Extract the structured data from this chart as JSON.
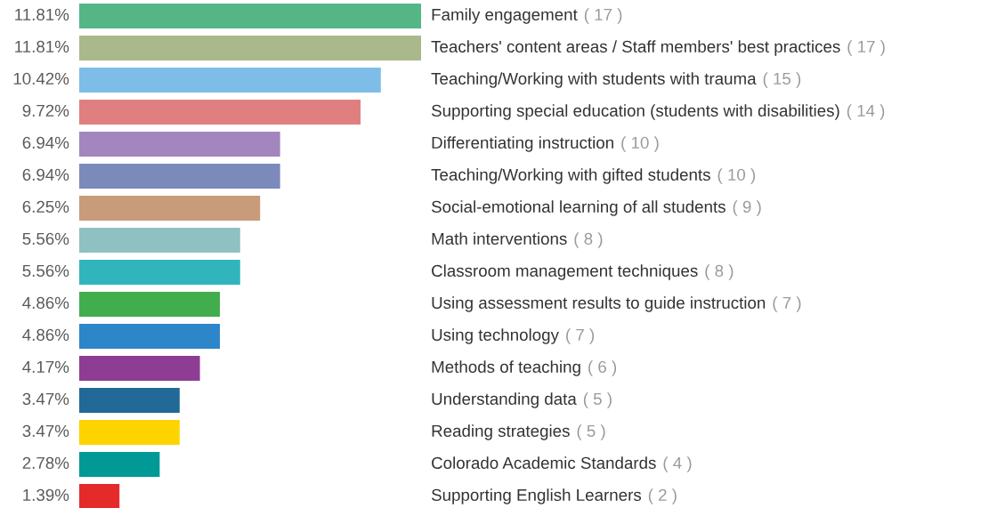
{
  "chart_data": {
    "type": "bar",
    "orientation": "horizontal",
    "categories": [
      "Family engagement",
      "Teachers' content areas / Staff members' best practices",
      "Teaching/Working with students with trauma",
      "Supporting special education (students with disabilities)",
      "Differentiating instruction",
      "Teaching/Working with gifted students",
      "Social-emotional learning of all students",
      "Math interventions",
      "Classroom management techniques",
      "Using assessment results to guide instruction",
      "Using technology",
      "Methods of teaching",
      "Understanding data",
      "Reading strategies",
      "Colorado Academic Standards",
      "Supporting English Learners"
    ],
    "values": [
      11.81,
      11.81,
      10.42,
      9.72,
      6.94,
      6.94,
      6.25,
      5.56,
      5.56,
      4.86,
      4.86,
      4.17,
      3.47,
      3.47,
      2.78,
      1.39
    ],
    "value_labels": [
      "11.81%",
      "11.81%",
      "10.42%",
      "9.72%",
      "6.94%",
      "6.94%",
      "6.25%",
      "5.56%",
      "5.56%",
      "4.86%",
      "4.86%",
      "4.17%",
      "3.47%",
      "3.47%",
      "2.78%",
      "1.39%"
    ],
    "colors": [
      "#55b685",
      "#a9b98a",
      "#7dbde8",
      "#e07f80",
      "#a286bd",
      "#7b8abb",
      "#c89b7a",
      "#8fc1c3",
      "#30b5bd",
      "#42ad4c",
      "#2c86c9",
      "#8e3d94",
      "#216a97",
      "#fdd400",
      "#009995",
      "#e52a2a"
    ],
    "annotations": [
      "( 17 )",
      "( 17 )",
      "( 15 )",
      "( 14 )",
      "( 10 )",
      "( 10 )",
      "( 9 )",
      "( 8 )",
      "( 8 )",
      "( 7 )",
      "( 7 )",
      "( 6 )",
      "( 5 )",
      "( 5 )",
      "( 4 )",
      "( 2 )"
    ]
  }
}
